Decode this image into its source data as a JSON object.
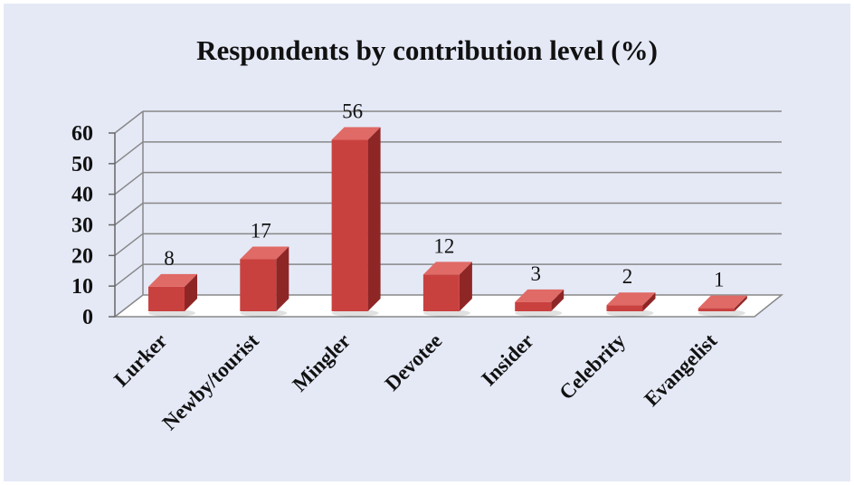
{
  "chart_data": {
    "type": "bar",
    "title": "Respondents by contribution level (%)",
    "categories": [
      "Lurker",
      "Newby/tourist",
      "Mingler",
      "Devotee",
      "Insider",
      "Celebrity",
      "Evangelist"
    ],
    "values": [
      8,
      17,
      56,
      12,
      3,
      2,
      1
    ],
    "data_labels": [
      "8",
      "17",
      "56",
      "12",
      "3",
      "2",
      "1"
    ],
    "y_ticks": [
      "0",
      "10",
      "20",
      "30",
      "40",
      "50",
      "60"
    ],
    "ylim": [
      0,
      60
    ],
    "grid": true,
    "legend": "none",
    "bar_color": "#c9413f",
    "bar_side_color": "#8f2626",
    "bar_top_color": "#e06a66",
    "background_color": "#e5e9f6"
  }
}
